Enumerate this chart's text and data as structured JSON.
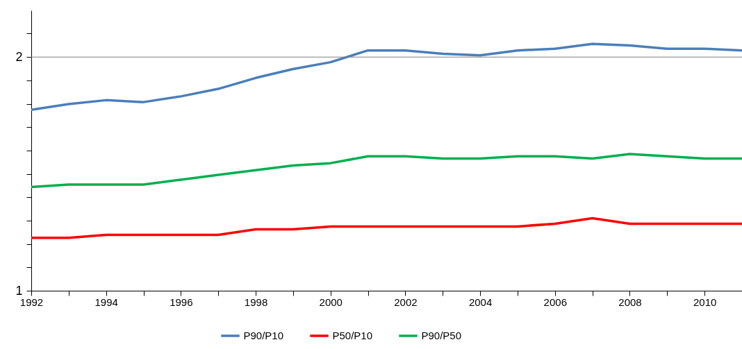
{
  "chart_data": {
    "type": "line",
    "x": [
      1992,
      1993,
      1994,
      1995,
      1996,
      1997,
      1998,
      1999,
      2000,
      2001,
      2002,
      2003,
      2004,
      2005,
      2006,
      2007,
      2008,
      2009,
      2010,
      2011
    ],
    "series": [
      {
        "name": "P90/P10",
        "color": "#4a7ebb",
        "values": [
          1.71,
          1.74,
          1.76,
          1.75,
          1.78,
          1.82,
          1.88,
          1.93,
          1.97,
          2.04,
          2.04,
          2.02,
          2.01,
          2.04,
          2.05,
          2.08,
          2.07,
          2.05,
          2.05,
          2.04
        ]
      },
      {
        "name": "P50/P10",
        "color": "#ff0000",
        "values": [
          1.17,
          1.17,
          1.18,
          1.18,
          1.18,
          1.18,
          1.2,
          1.2,
          1.21,
          1.21,
          1.21,
          1.21,
          1.21,
          1.21,
          1.22,
          1.24,
          1.22,
          1.22,
          1.22,
          1.22
        ]
      },
      {
        "name": "P90/P50",
        "color": "#00b050",
        "values": [
          1.36,
          1.37,
          1.37,
          1.37,
          1.39,
          1.41,
          1.43,
          1.45,
          1.46,
          1.49,
          1.49,
          1.48,
          1.48,
          1.49,
          1.49,
          1.48,
          1.5,
          1.49,
          1.48,
          1.48
        ]
      }
    ],
    "xlim": [
      1992,
      2011
    ],
    "xticks": [
      1992,
      {
        "value": 1993,
        "label": null
      },
      1994,
      {
        "value": 1995,
        "label": null
      },
      1996,
      {
        "value": 1997,
        "label": null
      },
      1998,
      {
        "value": 1999,
        "label": null
      },
      2000,
      {
        "value": 2001,
        "label": null
      },
      2002,
      {
        "value": 2003,
        "label": null
      },
      2004,
      {
        "value": 2005,
        "label": null
      },
      2006,
      {
        "value": 2007,
        "label": null
      },
      2008,
      {
        "value": 2009,
        "label": null
      },
      2010
    ],
    "ylim": [
      1,
      2.297
    ],
    "yticks": [
      1,
      {
        "value": 1.072,
        "label": null
      },
      {
        "value": 1.149,
        "label": null
      },
      {
        "value": 1.231,
        "label": null
      },
      {
        "value": 1.32,
        "label": null
      },
      {
        "value": 1.414,
        "label": null
      },
      {
        "value": 1.516,
        "label": null
      },
      {
        "value": 1.625,
        "label": null
      },
      {
        "value": 1.741,
        "label": null
      },
      {
        "value": 1.866,
        "label": null
      },
      2,
      {
        "value": 2.144,
        "label": null
      }
    ],
    "log": "y",
    "ref_lines": [
      {
        "axis": "y",
        "value": 2,
        "color": "#808080"
      }
    ],
    "legend": "bottom",
    "marker": "none",
    "line_style": "solid"
  }
}
